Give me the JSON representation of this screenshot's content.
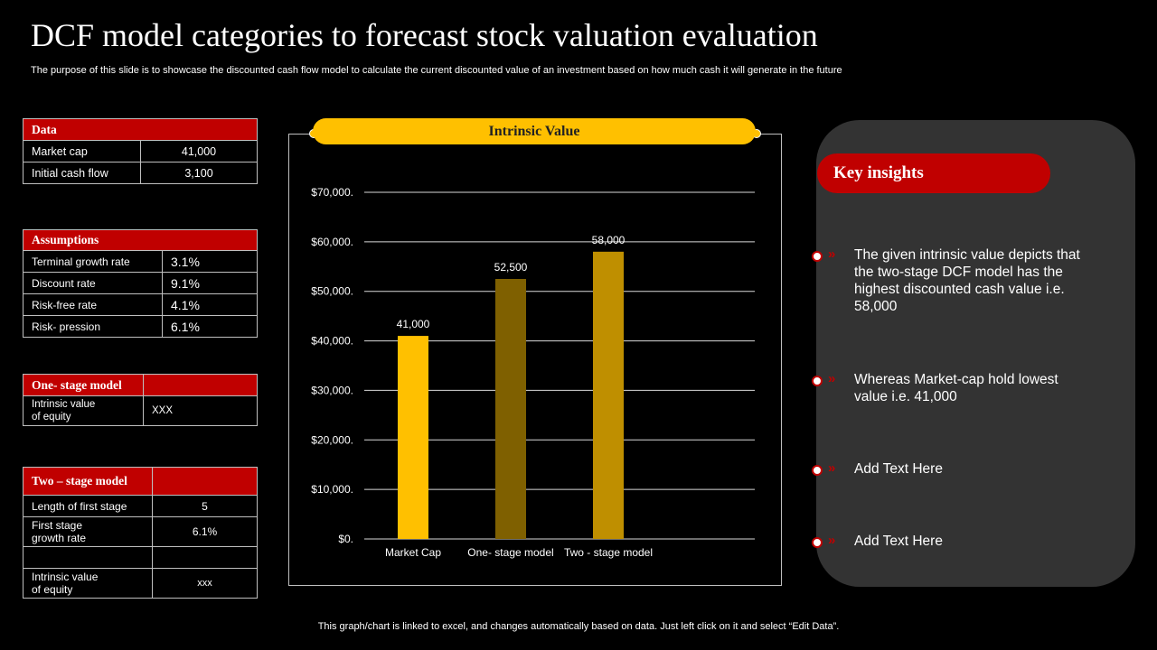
{
  "slide": {
    "title": "DCF model categories to forecast stock valuation evaluation",
    "subtitle": "The purpose of this slide is to showcase the discounted cash flow model to calculate the current discounted value of an investment based on how much cash it will generate in the future",
    "footer": "This graph/chart is linked to excel,  and changes automatically based on data. Just left click on it and select “Edit Data”."
  },
  "data_table": {
    "header": "Data",
    "rows": [
      {
        "label": "Market cap",
        "value": "41,000"
      },
      {
        "label": "Initial  cash flow",
        "value": "3,100"
      }
    ]
  },
  "assumptions_table": {
    "header": "Assumptions",
    "rows": [
      {
        "label": "Terminal growth rate",
        "value": "3.1%"
      },
      {
        "label": "Discount rate",
        "value": "9.1%"
      },
      {
        "label": "Risk-free rate",
        "value": "4.1%"
      },
      {
        "label": "Risk- pression",
        "value": "6.1%"
      }
    ]
  },
  "one_stage_table": {
    "header": "One- stage model",
    "row_label_line1": "Intrinsic value",
    "row_label_line2": "of equity",
    "row_value": "XXX"
  },
  "two_stage_table": {
    "header": "Two – stage model",
    "length_label": "Length of first stage",
    "length_value": "5",
    "growth_label_line1": "First stage",
    "growth_label_line2": "growth rate",
    "growth_value": "6.1%",
    "iv_label_line1": "Intrinsic value",
    "iv_label_line2": "of equity",
    "iv_value": "xxx"
  },
  "chart_data": {
    "type": "bar",
    "title": "Intrinsic Value",
    "categories": [
      "Market Cap",
      "One- stage model",
      "Two - stage model"
    ],
    "values": [
      41000,
      52500,
      58000
    ],
    "data_labels": [
      "41,000",
      "52,500",
      "58,000"
    ],
    "bar_colors": [
      "#ffc000",
      "#7f6000",
      "#bf8f00"
    ],
    "ylim": [
      0,
      70000
    ],
    "yticks": [
      0,
      10000,
      20000,
      30000,
      40000,
      50000,
      60000,
      70000
    ],
    "ytick_labels": [
      "$0.",
      "$10,000.",
      "$20,000.",
      "$30,000.",
      "$40,000.",
      "$50,000.",
      "$60,000.",
      "$70,000."
    ],
    "grid": true,
    "xlabel": "",
    "ylabel": ""
  },
  "insights": {
    "title": "Key insights",
    "chevron": "»",
    "items": [
      "The given intrinsic value depicts that the two-stage DCF model has the highest discounted cash value  i.e. 58,000",
      "Whereas Market-cap hold lowest value i.e. 41,000",
      "Add Text Here",
      "Add Text Here"
    ]
  }
}
